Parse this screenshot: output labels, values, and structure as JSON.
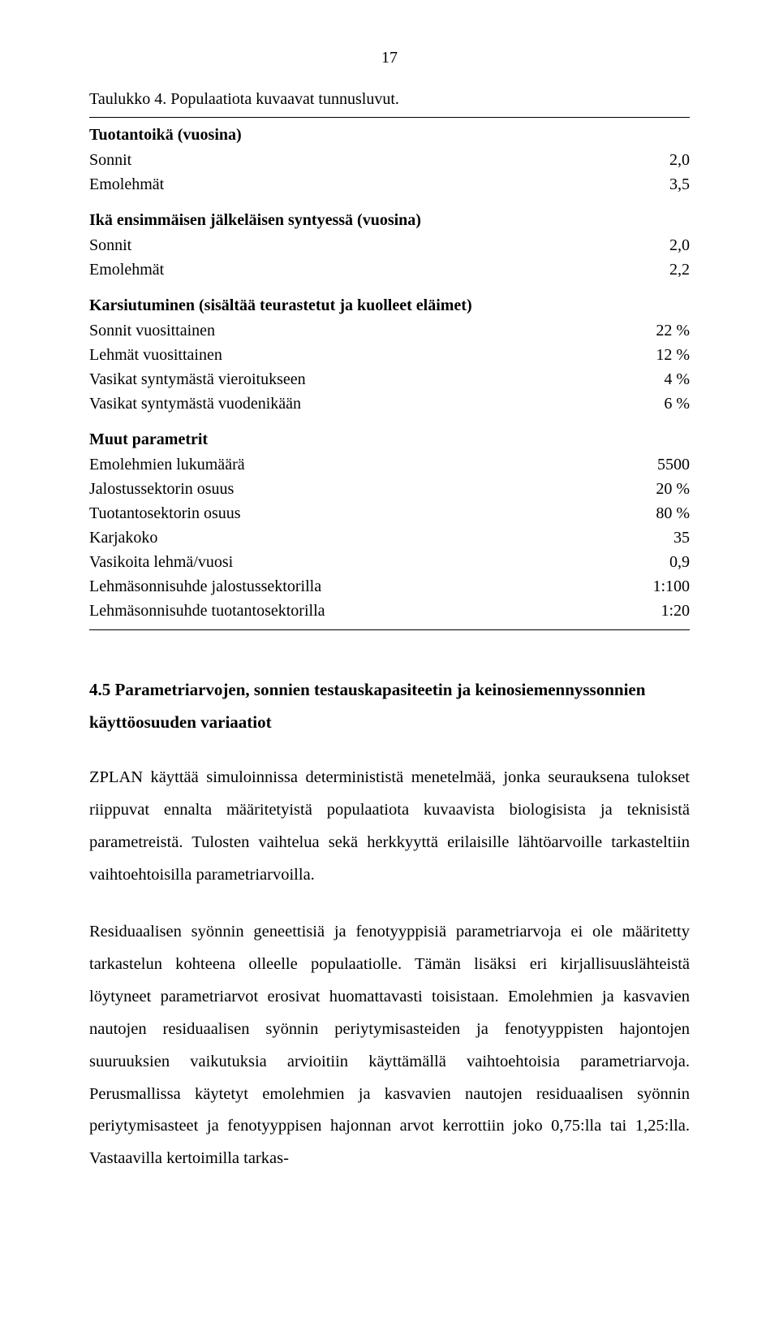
{
  "pageNumber": "17",
  "caption": "Taulukko 4. Populaatiota kuvaavat tunnusluvut.",
  "sections": [
    {
      "heading": "Tuotantoikä (vuosina)",
      "rows": [
        {
          "label": "Sonnit",
          "value": "2,0"
        },
        {
          "label": "Emolehmät",
          "value": "3,5"
        }
      ]
    },
    {
      "heading": "Ikä ensimmäisen jälkeläisen syntyessä (vuosina)",
      "rows": [
        {
          "label": "Sonnit",
          "value": "2,0"
        },
        {
          "label": "Emolehmät",
          "value": "2,2"
        }
      ]
    },
    {
      "heading": "Karsiutuminen (sisältää teurastetut ja kuolleet eläimet)",
      "rows": [
        {
          "label": "Sonnit vuosittainen",
          "value": "22 %"
        },
        {
          "label": "Lehmät vuosittainen",
          "value": "12 %"
        },
        {
          "label": "Vasikat syntymästä vieroitukseen",
          "value": "4 %"
        },
        {
          "label": "Vasikat syntymästä vuodenikään",
          "value": "6 %"
        }
      ]
    },
    {
      "heading": "Muut parametrit",
      "rows": [
        {
          "label": "Emolehmien lukumäärä",
          "value": "5500"
        },
        {
          "label": "Jalostussektorin osuus",
          "value": "20 %"
        },
        {
          "label": "Tuotantosektorin osuus",
          "value": "80 %"
        },
        {
          "label": "Karjakoko",
          "value": "35"
        },
        {
          "label": "Vasikoita lehmä/vuosi",
          "value": "0,9"
        },
        {
          "label": "Lehmäsonnisuhde jalostussektorilla",
          "value": "1:100"
        },
        {
          "label": "Lehmäsonnisuhde tuotantosektorilla",
          "value": "1:20"
        }
      ]
    }
  ],
  "bodyHeading": "4.5 Parametriarvojen, sonnien testauskapasiteetin ja keinosiemennyssonnien käyttöosuuden variaatiot",
  "paragraphs": [
    "ZPLAN käyttää simuloinnissa determinististä menetelmää, jonka seurauksena tulokset riippuvat ennalta määritetyistä populaatiota kuvaavista biologisista ja teknisistä parametreistä. Tulosten vaihtelua sekä herkkyyttä erilaisille lähtöarvoille tarkasteltiin vaihtoehtoisilla parametriarvoilla.",
    "Residuaalisen syönnin geneettisiä ja fenotyyppisiä parametriarvoja ei ole määritetty tarkastelun kohteena olleelle populaatiolle. Tämän lisäksi eri kirjallisuuslähteistä löytyneet parametriarvot erosivat huomattavasti toisistaan. Emolehmien ja kasvavien nautojen residuaalisen syönnin periytymisasteiden ja fenotyyppisten hajontojen suuruuksien vaikutuksia arvioitiin käyttämällä vaihtoehtoisia parametriarvoja. Perusmallissa käytetyt emolehmien ja kasvavien nautojen residuaalisen syönnin periytymisasteet ja fenotyyppisen hajonnan arvot kerrottiin joko 0,75:lla tai 1,25:lla. Vastaavilla kertoimilla tarkas-"
  ]
}
